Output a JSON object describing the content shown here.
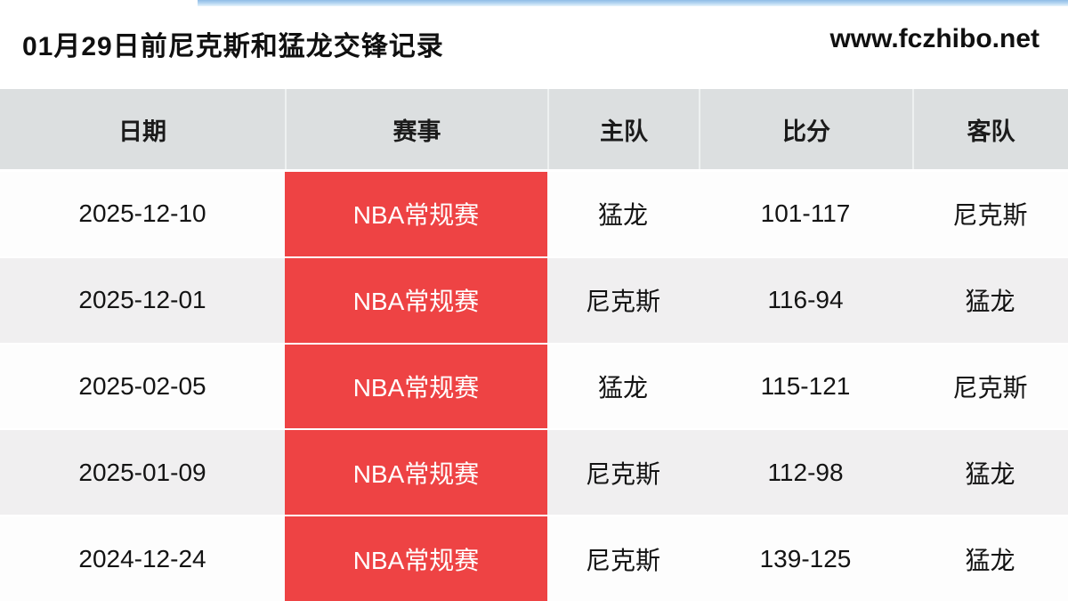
{
  "page": {
    "title": "01月29日前尼克斯和猛龙交锋记录",
    "site_url": "www.fczhibo.net"
  },
  "colors": {
    "accent_red": "#ee4344",
    "header_bg": "#dcdfe0",
    "row_alt_bg": "#f0eff0",
    "top_strip_blue": "#8fbde6"
  },
  "table": {
    "columns": [
      "日期",
      "赛事",
      "主队",
      "比分",
      "客队"
    ],
    "rows": [
      {
        "date": "2025-12-10",
        "event": "NBA常规赛",
        "home": "猛龙",
        "score": "101-117",
        "away": "尼克斯"
      },
      {
        "date": "2025-12-01",
        "event": "NBA常规赛",
        "home": "尼克斯",
        "score": "116-94",
        "away": "猛龙"
      },
      {
        "date": "2025-02-05",
        "event": "NBA常规赛",
        "home": "猛龙",
        "score": "115-121",
        "away": "尼克斯"
      },
      {
        "date": "2025-01-09",
        "event": "NBA常规赛",
        "home": "尼克斯",
        "score": "112-98",
        "away": "猛龙"
      },
      {
        "date": "2024-12-24",
        "event": "NBA常规赛",
        "home": "尼克斯",
        "score": "139-125",
        "away": "猛龙"
      }
    ]
  }
}
